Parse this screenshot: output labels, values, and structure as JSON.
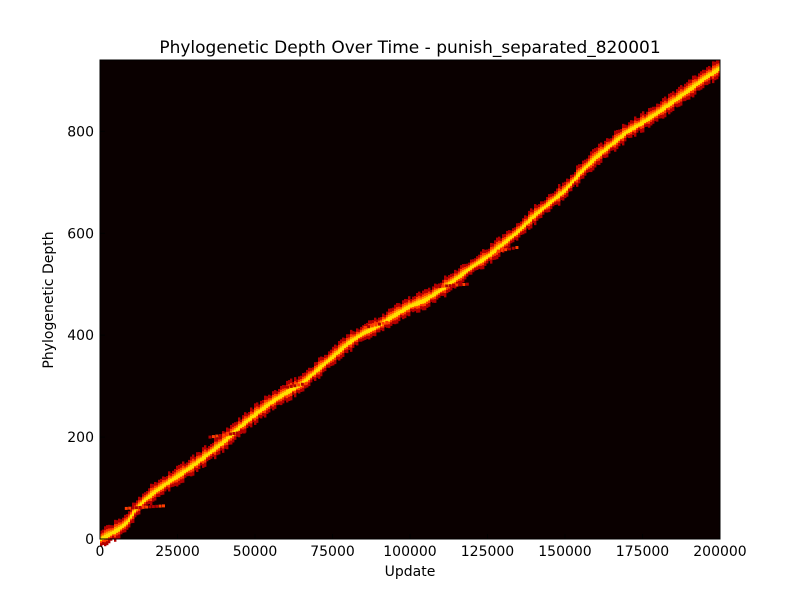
{
  "chart_data": {
    "type": "heatmap",
    "title": "Phylogenetic Depth Over Time - punish_separated_820001",
    "xlabel": "Update",
    "ylabel": "Phylogenetic Depth",
    "xlim": [
      0,
      200000
    ],
    "ylim": [
      0,
      940
    ],
    "xticks": [
      0,
      25000,
      50000,
      75000,
      100000,
      125000,
      150000,
      175000,
      200000
    ],
    "yticks": [
      0,
      200,
      400,
      600,
      800
    ],
    "colormap": [
      "#0a0000",
      "#5a0000",
      "#b40000",
      "#ff3c00",
      "#ff9600",
      "#ffe000",
      "#ffff80"
    ],
    "background": "#0a0000",
    "grid": false,
    "ridge": {
      "x": [
        0,
        3000,
        6000,
        9000,
        11000,
        14000,
        18000,
        22000,
        26000,
        30000,
        35000,
        40000,
        45000,
        50000,
        55000,
        60000,
        65000,
        70000,
        75000,
        80000,
        85000,
        90000,
        95000,
        100000,
        105000,
        110000,
        115000,
        120000,
        125000,
        130000,
        135000,
        140000,
        145000,
        150000,
        155000,
        160000,
        165000,
        170000,
        175000,
        180000,
        185000,
        190000,
        195000,
        200000
      ],
      "y": [
        0,
        10,
        20,
        35,
        55,
        75,
        95,
        112,
        128,
        145,
        168,
        192,
        220,
        245,
        268,
        288,
        305,
        332,
        358,
        385,
        405,
        420,
        440,
        458,
        470,
        490,
        512,
        535,
        555,
        580,
        605,
        635,
        660,
        685,
        720,
        750,
        775,
        800,
        818,
        838,
        860,
        882,
        905,
        925
      ]
    },
    "branches": [
      {
        "x": [
          8000,
          20000
        ],
        "y": [
          60,
          65
        ]
      },
      {
        "x": [
          35000,
          46000
        ],
        "y": [
          200,
          210
        ]
      },
      {
        "x": [
          108000,
          118000
        ],
        "y": [
          495,
          500
        ]
      },
      {
        "x": [
          60000,
          66000
        ],
        "y": [
          298,
          305
        ]
      },
      {
        "x": [
          85000,
          92000
        ],
        "y": [
          415,
          425
        ]
      },
      {
        "x": [
          128000,
          134000
        ],
        "y": [
          565,
          572
        ]
      }
    ]
  }
}
